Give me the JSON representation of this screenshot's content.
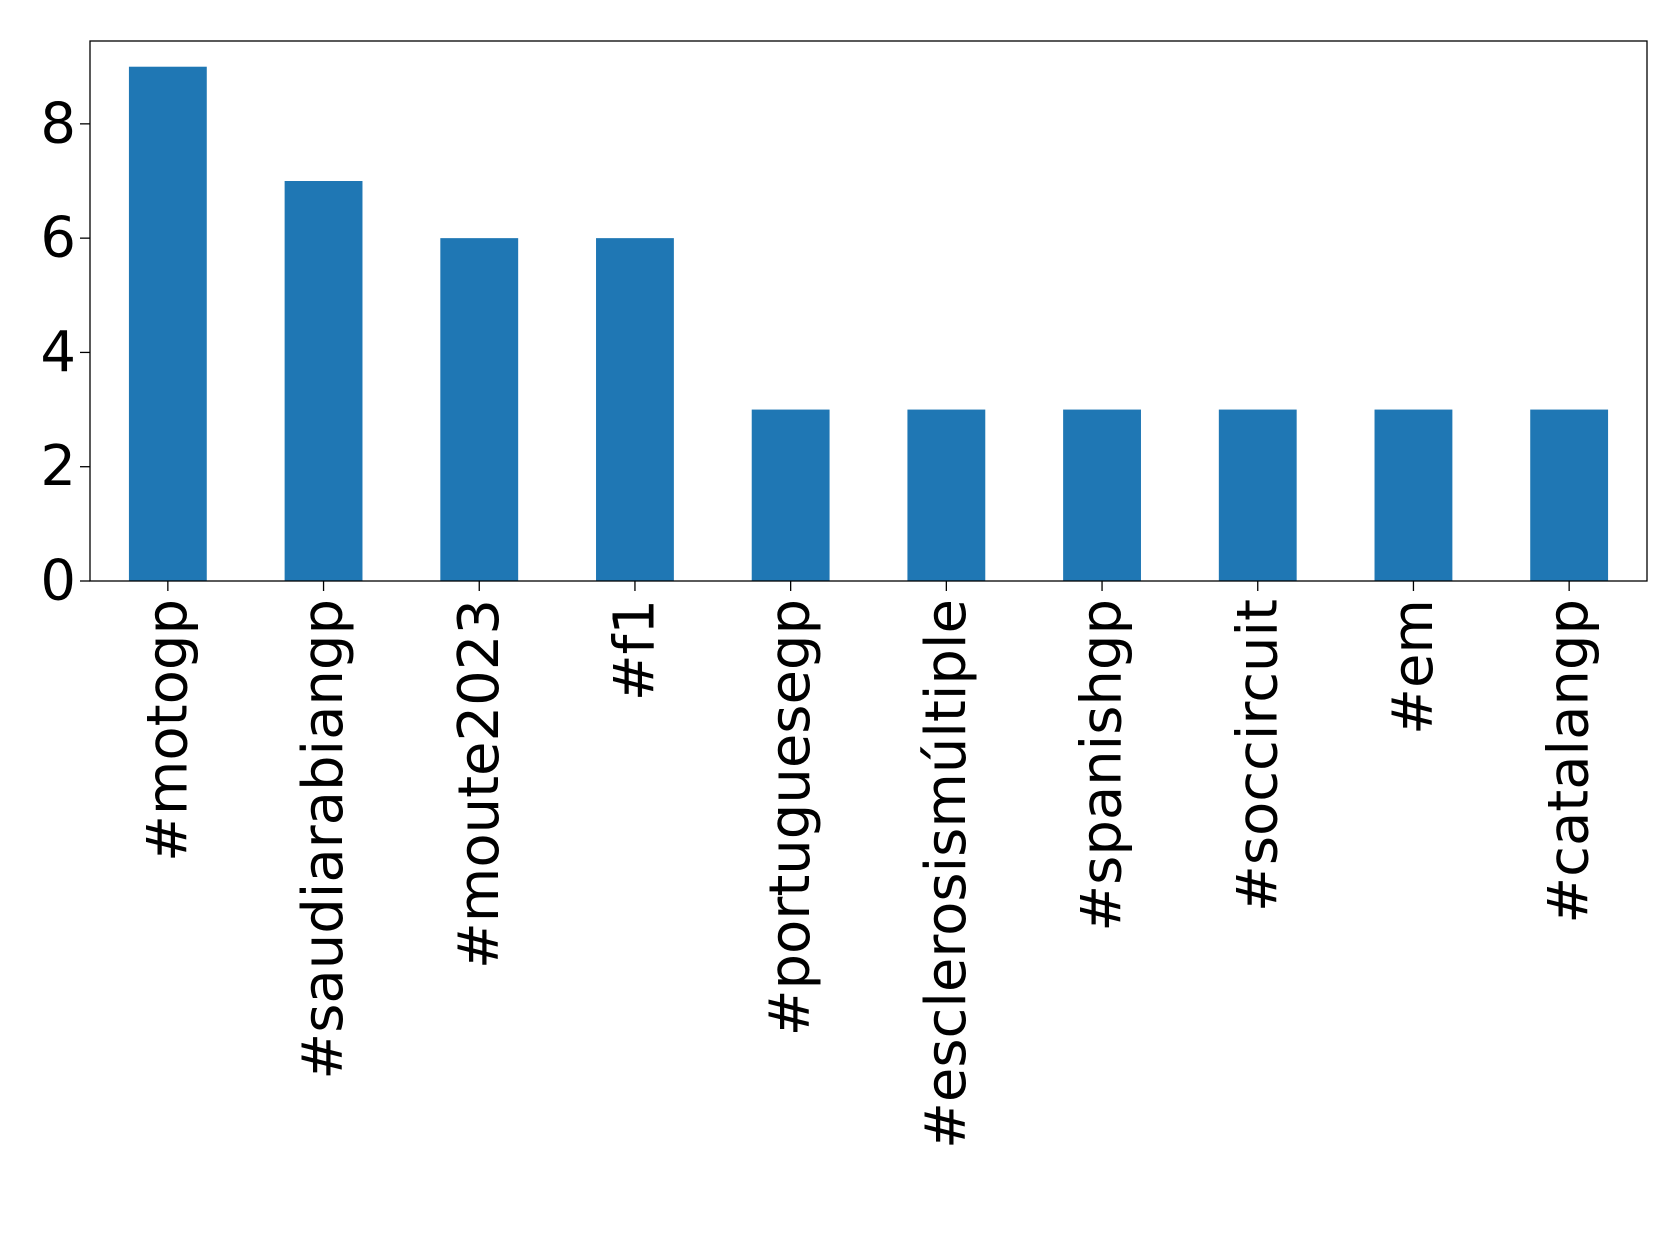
{
  "chart_data": {
    "type": "bar",
    "title": "",
    "xlabel": "",
    "ylabel": "",
    "categories": [
      "#motogp",
      "#saudiarabiangp",
      "#moute2023",
      "#f1",
      "#portuguesegp",
      "#esclerosismúltiple",
      "#spanishgp",
      "#soccircuit",
      "#em",
      "#catalangp"
    ],
    "values": [
      9,
      7,
      6,
      6,
      3,
      3,
      3,
      3,
      3,
      3
    ],
    "ylim": [
      0,
      9.45
    ],
    "yticks": [
      0,
      2,
      4,
      6,
      8
    ],
    "grid": false,
    "legend": "none",
    "bar_color": "#1f77b4"
  }
}
